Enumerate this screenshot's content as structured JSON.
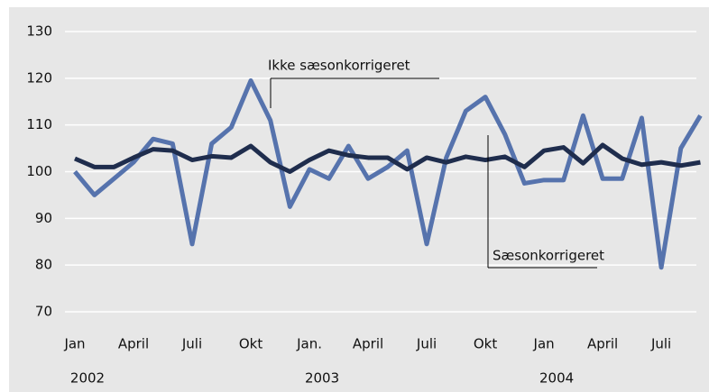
{
  "chart_data": {
    "type": "line",
    "categories": [
      "Jan",
      null,
      null,
      "April",
      null,
      null,
      "Juli",
      null,
      null,
      "Okt",
      null,
      null,
      "Jan.",
      null,
      null,
      "April",
      null,
      null,
      "Juli",
      null,
      null,
      "Okt",
      null,
      null,
      "Jan",
      null,
      null,
      "April",
      null,
      null,
      "Juli",
      null,
      null
    ],
    "years": [
      "2002",
      null,
      null,
      null,
      null,
      null,
      null,
      null,
      null,
      null,
      null,
      null,
      "2003",
      null,
      null,
      null,
      null,
      null,
      null,
      null,
      null,
      null,
      null,
      null,
      "2004",
      null,
      null,
      null,
      null,
      null,
      null,
      null,
      null
    ],
    "series": [
      {
        "name": "Ikke sæsonkorrigeret",
        "color": "#5673ad",
        "values": [
          100,
          95,
          98.5,
          102,
          107,
          106,
          84.5,
          106,
          109.5,
          119.5,
          111,
          92.5,
          100.5,
          98.5,
          105.5,
          98.5,
          101,
          104.5,
          84.5,
          103,
          113,
          116,
          108,
          97.5,
          98.2,
          98.2,
          112,
          98.5,
          98.5,
          111.5,
          79.5,
          105,
          112
        ]
      },
      {
        "name": "Sæsonkorrigeret",
        "color": "#1f2d4d",
        "values": [
          102.8,
          101,
          101,
          103,
          104.8,
          104.5,
          102.5,
          103.3,
          103,
          105.5,
          102,
          100,
          102.5,
          104.5,
          103.5,
          103,
          103,
          100.5,
          103,
          102,
          103.2,
          102.5,
          103.2,
          101,
          104.5,
          105.2,
          101.8,
          105.7,
          102.8,
          101.5,
          102,
          101.3,
          102
        ]
      }
    ],
    "ylim": [
      70,
      130
    ],
    "yticks": [
      70,
      80,
      90,
      100,
      110,
      120,
      130
    ],
    "grid": true
  }
}
